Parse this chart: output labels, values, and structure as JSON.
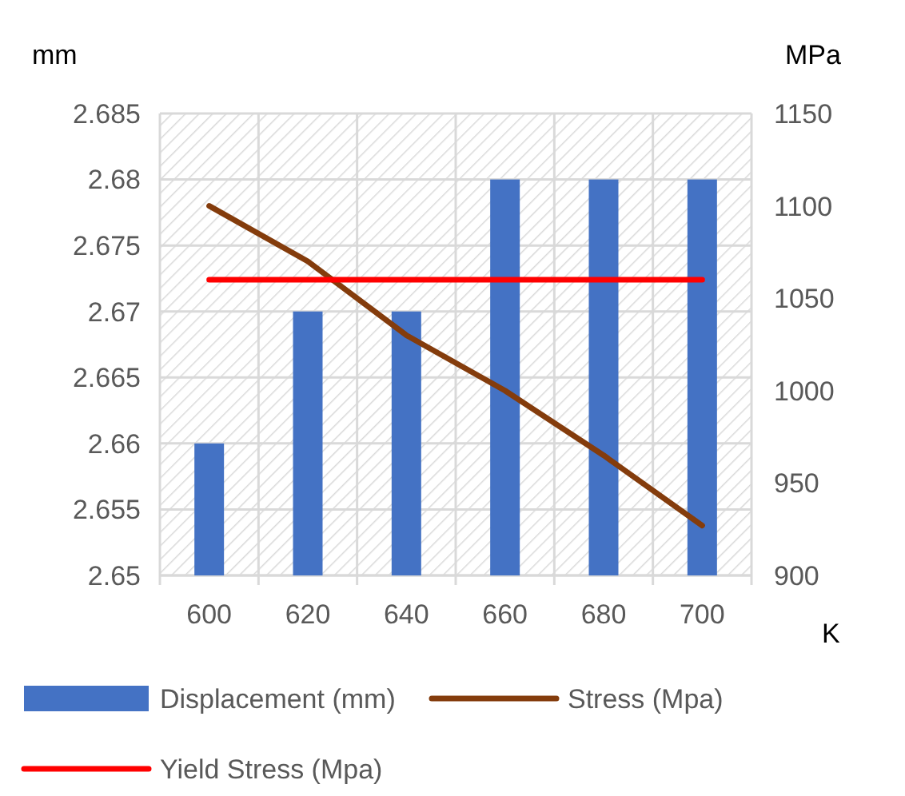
{
  "chart_data": {
    "type": "bar",
    "categories": [
      "600",
      "620",
      "640",
      "660",
      "680",
      "700"
    ],
    "ylabel": "mm",
    "y2label": "MPa",
    "xlabel": "K",
    "ylim": [
      2.65,
      2.685
    ],
    "yticks": [
      {
        "value": 2.65,
        "label": "2.65"
      },
      {
        "value": 2.655,
        "label": "2.655"
      },
      {
        "value": 2.66,
        "label": "2.66"
      },
      {
        "value": 2.665,
        "label": "2.665"
      },
      {
        "value": 2.67,
        "label": "2.67"
      },
      {
        "value": 2.675,
        "label": "2.675"
      },
      {
        "value": 2.68,
        "label": "2.68"
      },
      {
        "value": 2.685,
        "label": "2.685"
      }
    ],
    "y2lim": [
      900,
      1150
    ],
    "y2ticks": [
      900,
      950,
      1000,
      1050,
      1100,
      1150
    ],
    "grid": true,
    "legend": "bottom",
    "marker": "none",
    "series": [
      {
        "name": "Displacement (mm)",
        "color": "#4472c4",
        "values": [
          2.66,
          2.67,
          2.67,
          2.68,
          2.68,
          2.68
        ]
      },
      {
        "name": "Stress (Mpa)",
        "type": "line",
        "axis": "y2",
        "color": "#843c0c",
        "values": [
          1100,
          1070,
          1030,
          1000,
          965,
          927
        ]
      },
      {
        "name": "Yield Stress (Mpa)",
        "type": "line",
        "axis": "y2",
        "color": "#ff0000",
        "values": [
          1060,
          1060,
          1060,
          1060,
          1060,
          1060
        ]
      }
    ]
  }
}
